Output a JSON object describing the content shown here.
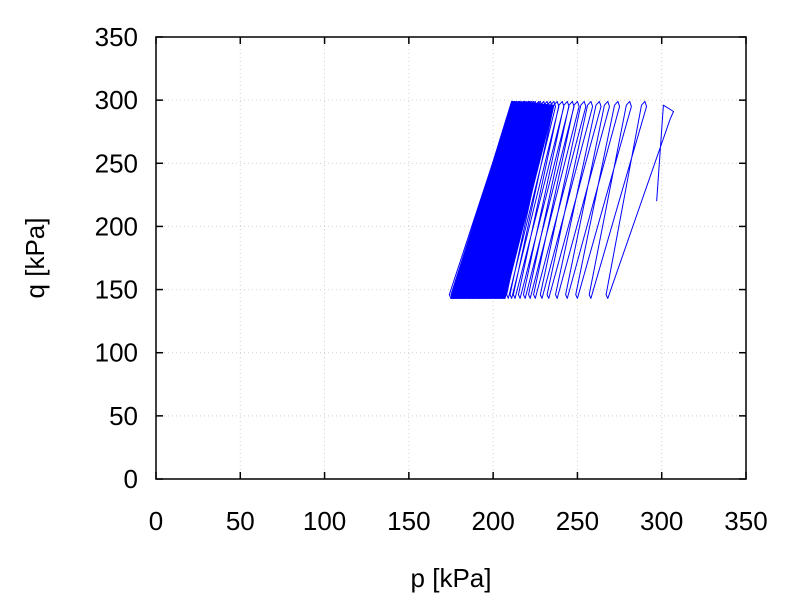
{
  "chart_data": {
    "type": "line",
    "title": "",
    "xlabel": "p [kPa]",
    "ylabel": "q [kPa]",
    "xlim": [
      0,
      350
    ],
    "ylim": [
      0,
      350
    ],
    "xticks": [
      0,
      50,
      100,
      150,
      200,
      250,
      300,
      350
    ],
    "yticks": [
      0,
      50,
      100,
      150,
      200,
      250,
      300,
      350
    ],
    "grid": true,
    "legend": "none",
    "series": [
      {
        "color": "#0000ff",
        "description_points": {
          "start": [
            297,
            220
          ],
          "first_peak": [
            301,
            296
          ],
          "first_peak_right": [
            307,
            291
          ],
          "final_cycle_low": [
            175,
            143
          ],
          "final_cycle_high": [
            211,
            299
          ],
          "q_min": 143,
          "q_max": 299
        },
        "cycle_lows": [
          268,
          258,
          250,
          244,
          238,
          233,
          229,
          225,
          222,
          219,
          216,
          213,
          211,
          209,
          207,
          205,
          203,
          201,
          199,
          197,
          196,
          194,
          192,
          191,
          189,
          188,
          186,
          185,
          183,
          182,
          181,
          180,
          179,
          178,
          177,
          176,
          176,
          175,
          175
        ],
        "cycle_highs": [
          288,
          279,
          272,
          266,
          261,
          256,
          252,
          248,
          245,
          242,
          239,
          236,
          234,
          232,
          230,
          228,
          226,
          225,
          223,
          222,
          221,
          220,
          219,
          218,
          217,
          216,
          215,
          215,
          214,
          214,
          213,
          213,
          212,
          212,
          212,
          211,
          211,
          211,
          211
        ]
      }
    ]
  }
}
